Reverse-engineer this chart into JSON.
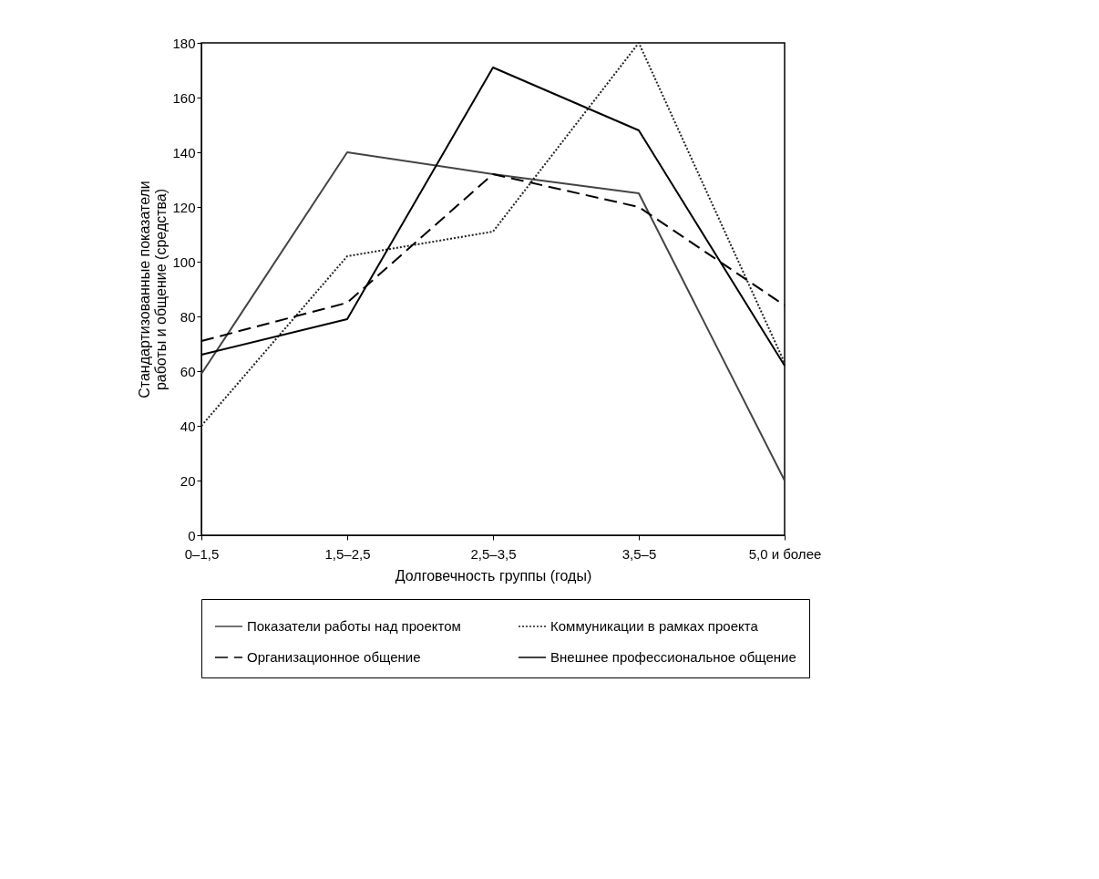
{
  "chart_data": {
    "type": "line",
    "xlabel": "Долговечность группы (годы)",
    "ylabel": "Стандартизованные показатели работы и общение (средства)",
    "categories": [
      "0–1,5",
      "1,5–2,5",
      "2,5–3,5",
      "3,5–5",
      "5,0 и более"
    ],
    "ylim": [
      0,
      180
    ],
    "yticks": [
      0,
      20,
      40,
      60,
      80,
      100,
      120,
      140,
      160,
      180
    ],
    "grid": false,
    "legend": "bottom",
    "marker": "none",
    "series": [
      {
        "name": "Показатели работы над проектом",
        "color": "#444444",
        "line_style": "solid",
        "values": [
          59,
          140,
          132,
          125,
          20
        ]
      },
      {
        "name": "Коммуникации в рамках проекта",
        "color": "#222222",
        "line_style": "dotted",
        "values": [
          40,
          102,
          111,
          180,
          63
        ]
      },
      {
        "name": "Организационное общение",
        "color": "#000000",
        "line_style": "dashed",
        "values": [
          71,
          85,
          132,
          120,
          84
        ]
      },
      {
        "name": "Внешнее профессиональное общение",
        "color": "#000000",
        "line_style": "solid",
        "values": [
          66,
          79,
          171,
          148,
          62
        ]
      }
    ]
  }
}
